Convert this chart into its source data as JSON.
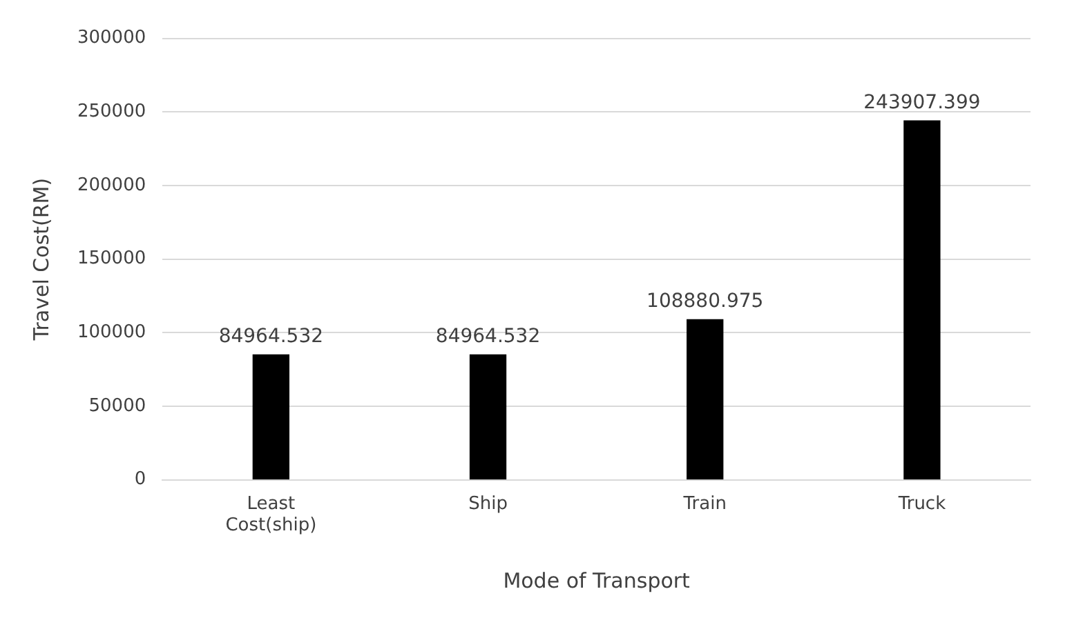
{
  "chart_data": {
    "type": "bar",
    "xlabel": "Mode of Transport",
    "ylabel": "Travel Cost(RM)",
    "categories": [
      "Least Cost(ship)",
      "Ship",
      "Train",
      "Truck"
    ],
    "values": [
      84964.532,
      84964.532,
      108880.975,
      243907.399
    ],
    "color": "#000000",
    "ylim": [
      0,
      300000
    ],
    "yticks": [
      0,
      50000,
      100000,
      150000,
      200000,
      250000,
      300000
    ],
    "grid": "y",
    "data_labels": true
  }
}
